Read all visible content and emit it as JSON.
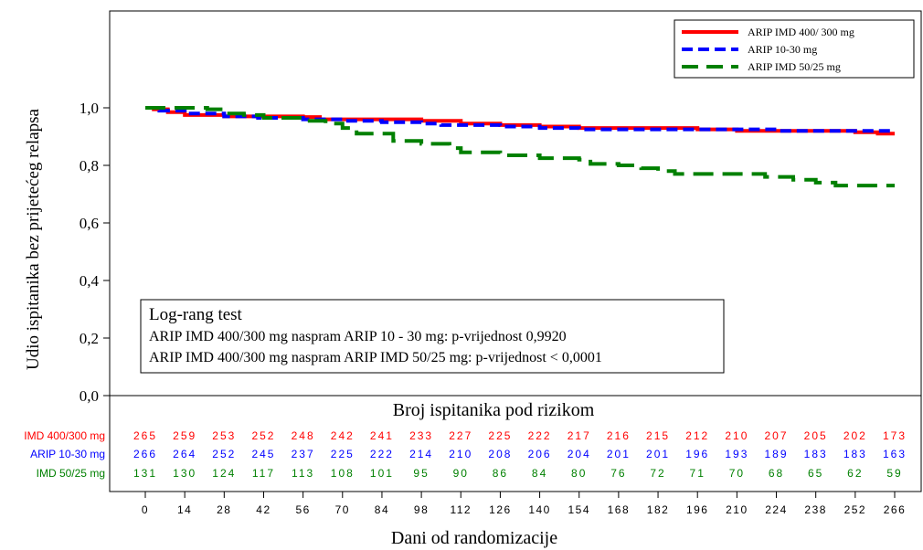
{
  "chart_data": {
    "type": "line",
    "step": true,
    "ylabel": "Udio ispitanika bez prijetećeg relapsa",
    "xlabel": "Dani od randomizacije",
    "xlim": [
      0,
      266
    ],
    "ylim": [
      0,
      1.0
    ],
    "x_ticks": [
      0,
      14,
      28,
      42,
      56,
      70,
      84,
      98,
      112,
      126,
      140,
      154,
      168,
      182,
      196,
      210,
      224,
      238,
      252,
      266
    ],
    "y_ticks": [
      "1,0",
      "0,8",
      "0,6",
      "0,4",
      "0,2",
      "0,0"
    ],
    "legend_position": "top-right",
    "series": [
      {
        "name": "ARIP IMD 400/ 300 mg",
        "color": "#ff0000",
        "dash": "solid",
        "points": [
          [
            0,
            1.0
          ],
          [
            3,
            0.995
          ],
          [
            8,
            0.985
          ],
          [
            14,
            0.975
          ],
          [
            28,
            0.97
          ],
          [
            42,
            0.97
          ],
          [
            56,
            0.968
          ],
          [
            62,
            0.96
          ],
          [
            84,
            0.96
          ],
          [
            98,
            0.955
          ],
          [
            112,
            0.945
          ],
          [
            126,
            0.94
          ],
          [
            140,
            0.935
          ],
          [
            154,
            0.93
          ],
          [
            168,
            0.93
          ],
          [
            196,
            0.925
          ],
          [
            210,
            0.92
          ],
          [
            238,
            0.92
          ],
          [
            252,
            0.915
          ],
          [
            260,
            0.91
          ],
          [
            266,
            0.91
          ]
        ]
      },
      {
        "name": "ARIP 10-30 mg",
        "color": "#0000ff",
        "dash": "dashed",
        "points": [
          [
            0,
            1.0
          ],
          [
            5,
            0.99
          ],
          [
            14,
            0.98
          ],
          [
            28,
            0.97
          ],
          [
            40,
            0.965
          ],
          [
            56,
            0.96
          ],
          [
            70,
            0.955
          ],
          [
            84,
            0.95
          ],
          [
            98,
            0.945
          ],
          [
            105,
            0.94
          ],
          [
            126,
            0.935
          ],
          [
            140,
            0.93
          ],
          [
            154,
            0.925
          ],
          [
            210,
            0.925
          ],
          [
            224,
            0.92
          ],
          [
            266,
            0.92
          ]
        ]
      },
      {
        "name": "ARIP IMD 50/25 mg",
        "color": "#008000",
        "dash": "longdash",
        "points": [
          [
            0,
            1.0
          ],
          [
            14,
            1.0
          ],
          [
            22,
            0.995
          ],
          [
            28,
            0.98
          ],
          [
            35,
            0.975
          ],
          [
            42,
            0.965
          ],
          [
            56,
            0.955
          ],
          [
            64,
            0.945
          ],
          [
            70,
            0.93
          ],
          [
            75,
            0.91
          ],
          [
            88,
            0.885
          ],
          [
            98,
            0.875
          ],
          [
            108,
            0.86
          ],
          [
            112,
            0.845
          ],
          [
            126,
            0.835
          ],
          [
            140,
            0.825
          ],
          [
            154,
            0.82
          ],
          [
            158,
            0.805
          ],
          [
            168,
            0.8
          ],
          [
            176,
            0.79
          ],
          [
            182,
            0.78
          ],
          [
            188,
            0.77
          ],
          [
            210,
            0.77
          ],
          [
            220,
            0.76
          ],
          [
            230,
            0.75
          ],
          [
            238,
            0.74
          ],
          [
            245,
            0.73
          ],
          [
            266,
            0.73
          ]
        ]
      }
    ],
    "annotation": {
      "title": "Log-rang test",
      "lines": [
        "ARIP IMD 400/300 mg naspram ARIP 10 - 30 mg: p-vrijednost 0,9920",
        "ARIP IMD 400/300 mg naspram ARIP IMD 50/25 mg: p-vrijednost < 0,0001"
      ]
    },
    "risk_table": {
      "title": "Broj ispitanika pod rizikom",
      "rows": [
        {
          "label": "IMD 400/300 mg",
          "color": "#ff0000",
          "values": [
            "265",
            "259",
            "253",
            "252",
            "248",
            "242",
            "241",
            "233",
            "227",
            "225",
            "222",
            "217",
            "216",
            "215",
            "212",
            "210",
            "207",
            "205",
            "202",
            "173"
          ]
        },
        {
          "label": "ARIP 10-30 mg",
          "color": "#0000ff",
          "values": [
            "266",
            "264",
            "252",
            "245",
            "237",
            "225",
            "222",
            "214",
            "210",
            "208",
            "206",
            "204",
            "201",
            "201",
            "196",
            "193",
            "189",
            "183",
            "183",
            "163"
          ]
        },
        {
          "label": "IMD 50/25 mg",
          "color": "#008000",
          "values": [
            "131",
            "130",
            "124",
            "117",
            "113",
            "108",
            "101",
            "95",
            "90",
            "86",
            "84",
            "80",
            "76",
            "72",
            "71",
            "70",
            "68",
            "65",
            "62",
            "59"
          ]
        }
      ]
    }
  }
}
